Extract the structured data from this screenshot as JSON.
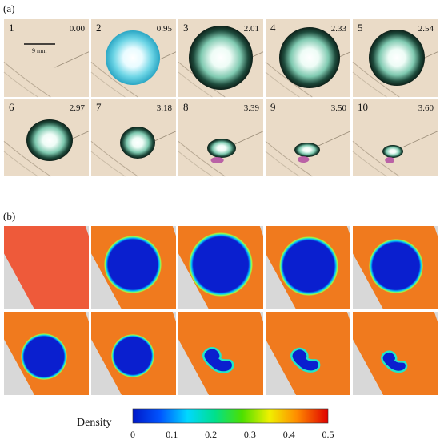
{
  "panel_a": {
    "label": "(a)",
    "frames": [
      {
        "number": "1",
        "time": "0.00"
      },
      {
        "number": "2",
        "time": "0.95"
      },
      {
        "number": "3",
        "time": "2.01"
      },
      {
        "number": "4",
        "time": "2.33"
      },
      {
        "number": "5",
        "time": "2.54"
      },
      {
        "number": "6",
        "time": "2.97"
      },
      {
        "number": "7",
        "time": "3.18"
      },
      {
        "number": "8",
        "time": "3.39"
      },
      {
        "number": "9",
        "time": "3.50"
      },
      {
        "number": "10",
        "time": "3.60"
      }
    ],
    "scale_bar": "9 mm"
  },
  "panel_b": {
    "label": "(b)",
    "colorbar": {
      "title": "Density",
      "ticks": [
        "0",
        "0.1",
        "0.2",
        "0.3",
        "0.4",
        "0.5"
      ],
      "range": [
        0,
        0.5
      ]
    }
  },
  "colors": {
    "photo_bg": "#eadbc7",
    "sim_bg": "#f07a1e",
    "sim_bubble": "#0a1fcf",
    "sim_grey": "#d8d8d8",
    "sim_first": "#ee5a3a"
  }
}
